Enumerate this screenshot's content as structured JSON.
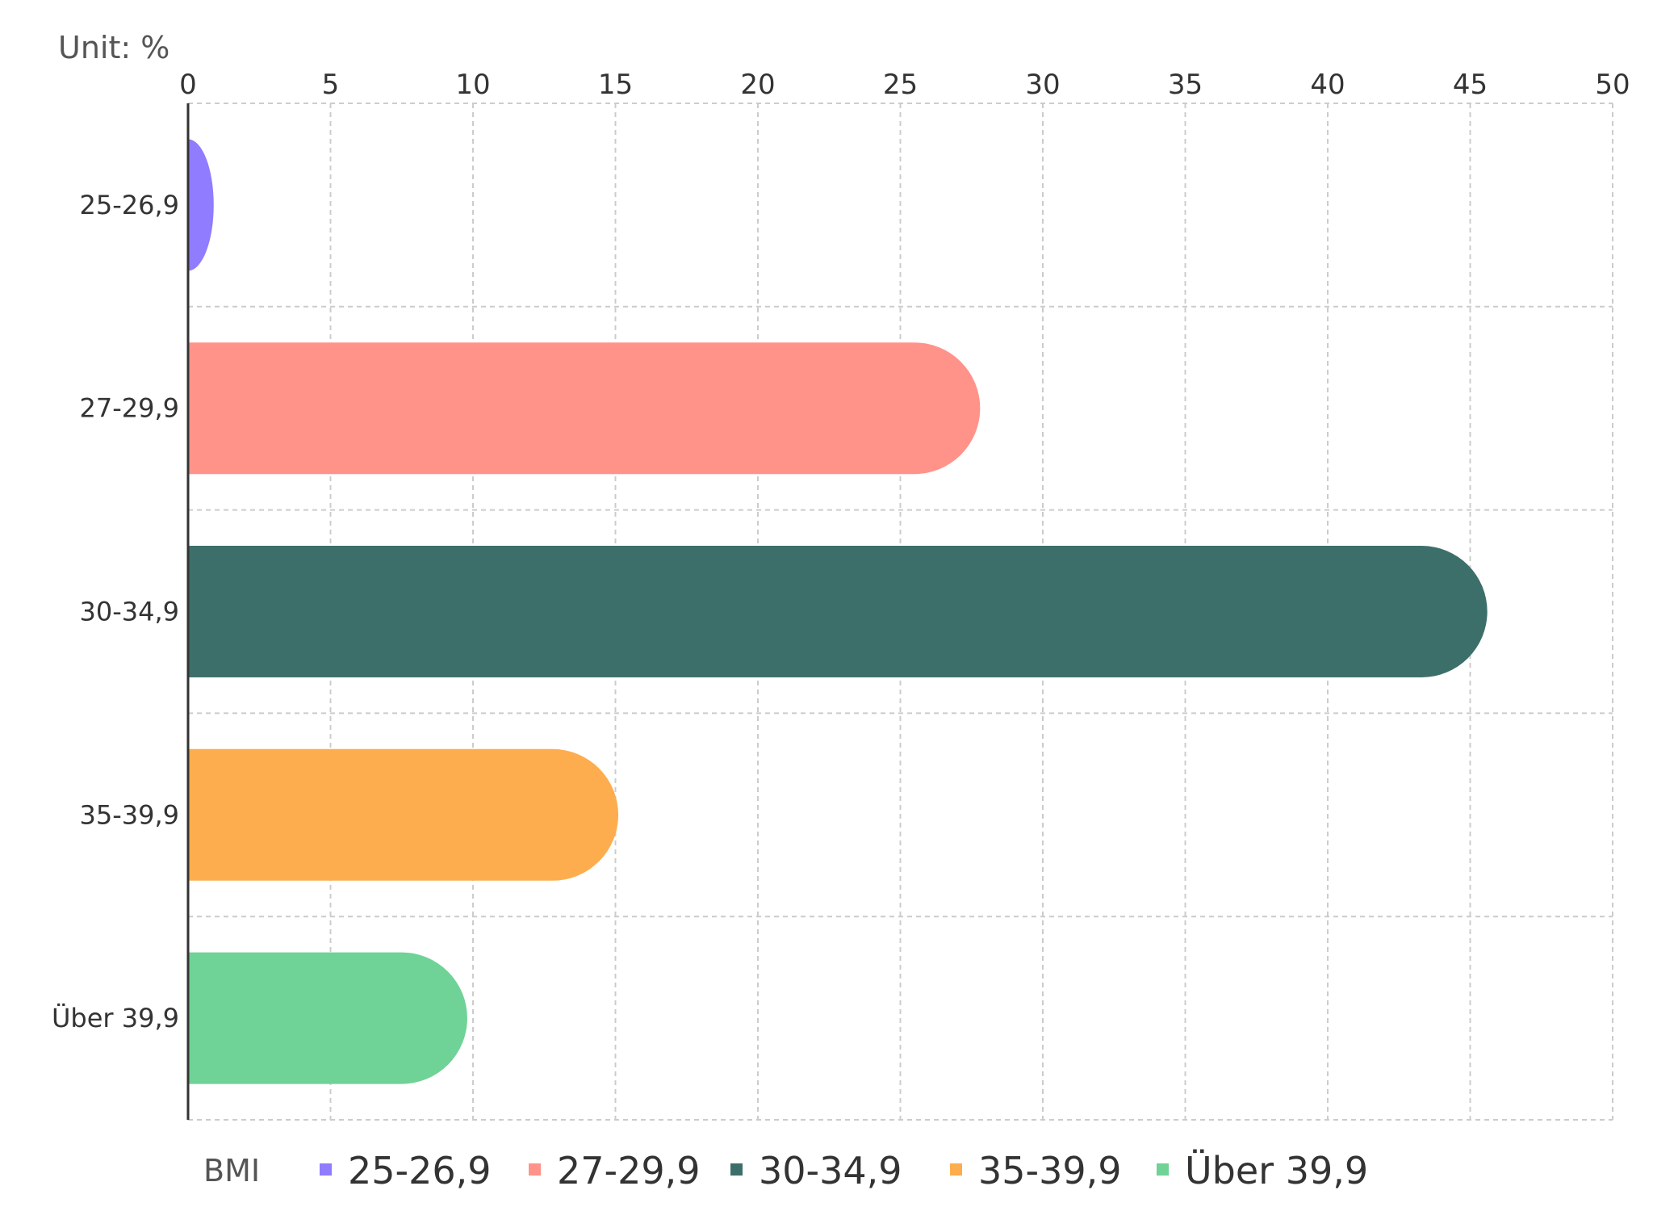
{
  "chart_data": {
    "type": "bar",
    "orientation": "horizontal",
    "unit_label": "Unit: %",
    "categories": [
      "25-26,9",
      "27-29,9",
      "30-34,9",
      "35-39,9",
      "Über 39,9"
    ],
    "values": [
      0.9,
      27.8,
      45.6,
      15.1,
      9.8
    ],
    "colors": [
      "#8f7cff",
      "#ff938a",
      "#3d6f6a",
      "#fdad4d",
      "#6fd296"
    ],
    "xlim": [
      0,
      50
    ],
    "xticks": [
      0,
      5,
      10,
      15,
      20,
      25,
      30,
      35,
      40,
      45,
      50
    ],
    "grid": true,
    "legend": {
      "title": "BMI",
      "placement": "bottom",
      "entries": [
        "25-26,9",
        "27-29,9",
        "30-34,9",
        "35-39,9",
        "Über 39,9"
      ]
    }
  }
}
